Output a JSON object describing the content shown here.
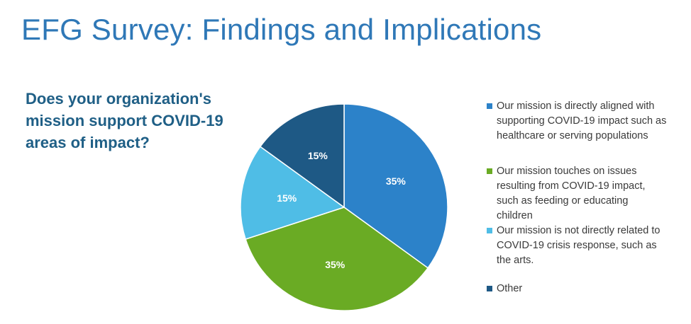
{
  "slide": {
    "title": "EFG Survey: Findings and Implications",
    "question_lines": [
      "Does your organization's",
      "mission support COVID-19",
      "areas of impact?"
    ]
  },
  "colors": {
    "title": "#2f78b7",
    "question": "#1f5f86"
  },
  "chart_data": {
    "type": "pie",
    "title": "",
    "slices": [
      {
        "label": "Our mission is directly aligned with supporting COVID-19 impact such as healthcare or serving populations",
        "value": 35,
        "display": "35%",
        "color": "#2c82c9"
      },
      {
        "label": "Our mission touches on issues resulting from COVID-19 impact, such as feeding or educating children",
        "value": 35,
        "display": "35%",
        "color": "#6aab24"
      },
      {
        "label": "Our mission is not directly related to COVID-19 crisis response, such as the arts.",
        "value": 15,
        "display": "15%",
        "color": "#4fbde6"
      },
      {
        "label": "Other",
        "value": 15,
        "display": "15%",
        "color": "#1e5985"
      }
    ],
    "legend_lines": [
      [
        "Our mission is directly aligned with",
        "supporting COVID-19 impact such as",
        "healthcare or serving populations"
      ],
      [
        "Our mission touches on issues",
        "resulting from COVID-19 impact,",
        "such as feeding or educating",
        "children"
      ],
      [
        "Our mission is not directly related to",
        "COVID-19 crisis response, such as",
        "the arts."
      ],
      [
        "Other"
      ]
    ],
    "legend_position": "right",
    "start_angle": "12 o'clock",
    "direction": "clockwise"
  }
}
